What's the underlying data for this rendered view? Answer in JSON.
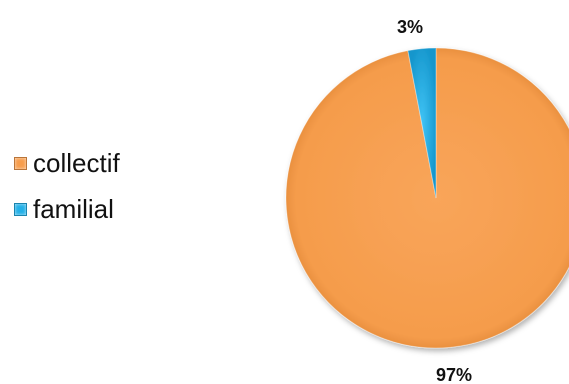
{
  "chart_data": {
    "type": "pie",
    "categories": [
      "collectif",
      "familial"
    ],
    "values": [
      97,
      3
    ],
    "data_labels": [
      "97%",
      "3%"
    ],
    "colors": [
      "#F79D4C",
      "#23B0E8"
    ],
    "legend_position": "left",
    "title": ""
  }
}
